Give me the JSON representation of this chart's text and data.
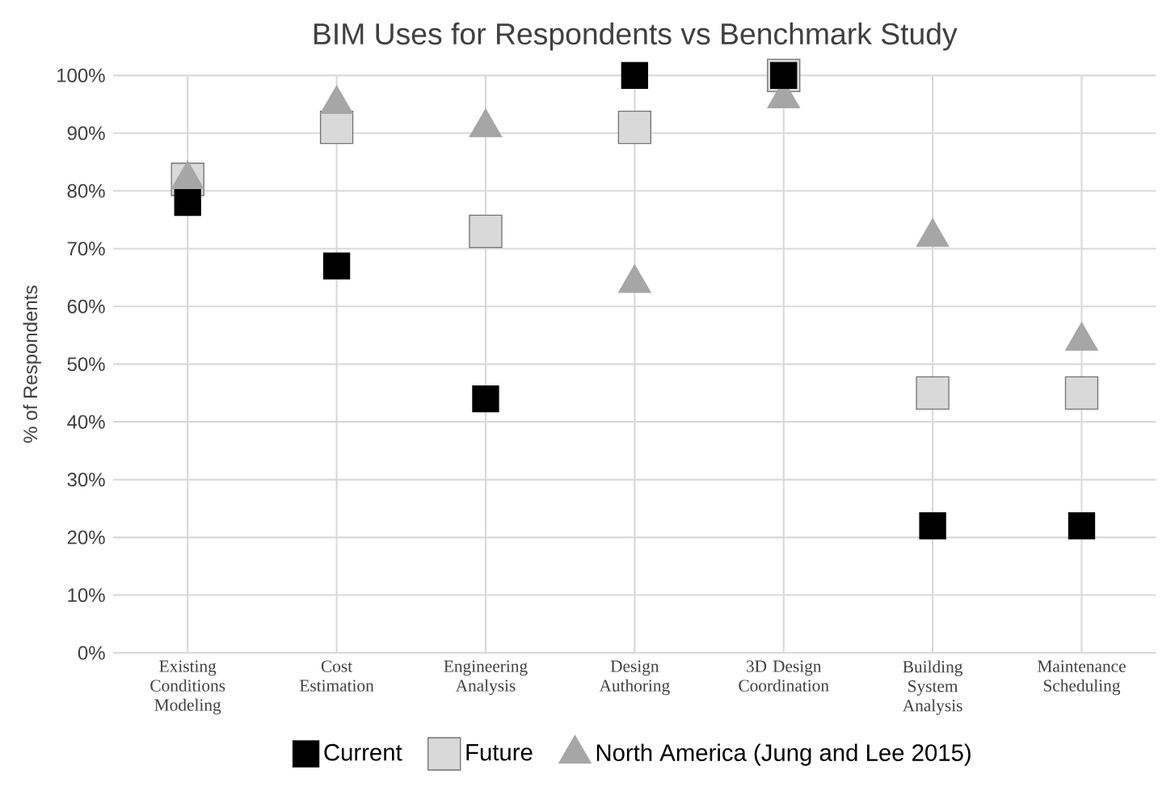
{
  "chart_data": {
    "type": "scatter",
    "title": "BIM Uses for Respondents vs Benchmark Study",
    "ylabel": "% of Respondents",
    "categories": [
      "Existing Conditions Modeling",
      "Cost Estimation",
      "Engineering Analysis",
      "Design Authoring",
      "3D Design Coordination",
      "Building System Analysis",
      "Maintenance Scheduling"
    ],
    "series": [
      {
        "name": "Current",
        "color": "#000000",
        "marker": "square",
        "values": [
          78,
          67,
          44,
          100,
          100,
          22,
          22
        ]
      },
      {
        "name": "Future",
        "color": "#d9d9d9",
        "marker": "square",
        "values": [
          82,
          91,
          73,
          91,
          100,
          45,
          45
        ]
      },
      {
        "name": "North America (Jung and Lee 2015)",
        "color": "#a6a6a6",
        "marker": "triangle",
        "values": [
          82,
          95,
          91,
          64,
          96,
          72,
          54
        ]
      }
    ],
    "ylim": [
      0,
      100
    ],
    "yticks": [
      {
        "value": 0,
        "label": "0%"
      },
      {
        "value": 10,
        "label": "10%"
      },
      {
        "value": 20,
        "label": "20%"
      },
      {
        "value": 30,
        "label": "30%"
      },
      {
        "value": 40,
        "label": "40%"
      },
      {
        "value": 50,
        "label": "50%"
      },
      {
        "value": 60,
        "label": "60%"
      },
      {
        "value": 70,
        "label": "70%"
      },
      {
        "value": 80,
        "label": "80%"
      },
      {
        "value": 90,
        "label": "90%"
      },
      {
        "value": 100,
        "label": "100%"
      }
    ],
    "grid": true,
    "legend": "bottom"
  }
}
